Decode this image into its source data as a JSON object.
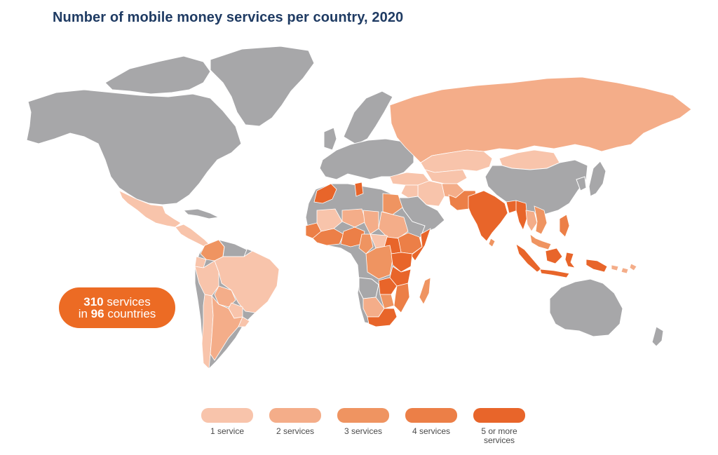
{
  "title": "Number of mobile money services per country, 2020",
  "badge": {
    "services_count": "310",
    "services_text": "services",
    "in_text": "in",
    "countries_count": "96",
    "countries_text": "countries"
  },
  "legend": {
    "items": [
      {
        "label": "1 service",
        "color": "#f8c4ab"
      },
      {
        "label": "2 services",
        "color": "#f4ad89"
      },
      {
        "label": "3 services",
        "color": "#ef9461"
      },
      {
        "label": "4 services",
        "color": "#ec7f47"
      },
      {
        "label": "5 or more\nservices",
        "color": "#e8652a"
      }
    ]
  },
  "colors": {
    "no_data": "#a7a7a9",
    "title": "#1f3b63",
    "badge": "#ec6b24"
  }
}
